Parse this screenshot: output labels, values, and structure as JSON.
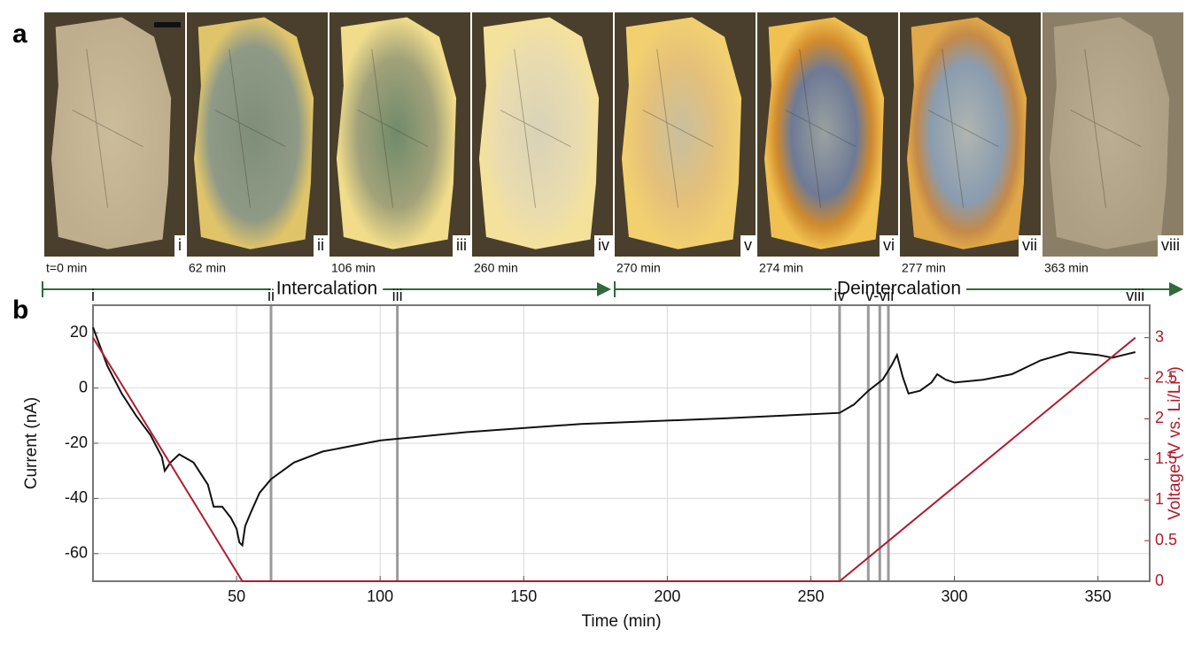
{
  "panel_a": {
    "label": "a",
    "images": [
      {
        "numeral": "i",
        "time": "t=0 min"
      },
      {
        "numeral": "ii",
        "time": "62 min"
      },
      {
        "numeral": "iii",
        "time": "106 min"
      },
      {
        "numeral": "iv",
        "time": "260 min"
      },
      {
        "numeral": "v",
        "time": "270 min"
      },
      {
        "numeral": "vi",
        "time": "274 min"
      },
      {
        "numeral": "vii",
        "time": "277 min"
      },
      {
        "numeral": "viii",
        "time": "363 min"
      }
    ],
    "arrows": [
      "Intercalation",
      "Deintercalation"
    ]
  },
  "panel_b_label": "b",
  "chart_data": {
    "type": "line",
    "x_label": "Time (min)",
    "y_label": "Current (nA)",
    "y2_label": "Voltage (V vs. Li/Li⁺)",
    "xlim": [
      0,
      368
    ],
    "xticks": [
      50,
      100,
      150,
      200,
      250,
      300,
      350
    ],
    "ylim": [
      -70,
      30
    ],
    "yticks": [
      -60,
      -40,
      -20,
      0,
      20
    ],
    "y2lim": [
      0,
      3.4
    ],
    "y2ticks": [
      0,
      0.5,
      1,
      1.5,
      2,
      2.5,
      3
    ],
    "grid": true,
    "series": [
      {
        "color": "#111111",
        "axis": "y",
        "x": [
          0,
          5,
          10,
          15,
          20,
          24,
          25,
          27,
          30,
          35,
          40,
          42,
          45,
          48,
          50,
          51,
          52,
          53,
          55,
          58,
          62,
          70,
          80,
          100,
          130,
          170,
          220,
          260,
          265,
          270,
          275,
          278,
          280,
          282,
          284,
          288,
          292,
          294,
          297,
          300,
          310,
          320,
          330,
          340,
          350,
          355,
          363
        ],
        "values": [
          22,
          8,
          -2,
          -10,
          -17,
          -25,
          -30,
          -27,
          -24,
          -27,
          -35,
          -43,
          -43,
          -47,
          -51,
          -56,
          -57,
          -50,
          -45,
          -38,
          -33,
          -27,
          -23,
          -19,
          -16,
          -13,
          -11,
          -9,
          -6,
          -1,
          3,
          8,
          12,
          4,
          -2,
          -1,
          2,
          5,
          3,
          2,
          3,
          5,
          10,
          13,
          12,
          11,
          13
        ]
      },
      {
        "color": "#b01c2e",
        "axis": "y2",
        "x": [
          0,
          52,
          260,
          363
        ],
        "values": [
          3,
          0,
          0,
          3
        ]
      }
    ],
    "events": {
      "lines": [
        62,
        106,
        260,
        270,
        274,
        277
      ],
      "labels": [
        "i",
        "ii",
        "iii",
        "iv",
        "v-vii",
        "viii"
      ],
      "label_x": [
        0,
        62,
        106,
        260,
        274,
        363
      ]
    }
  }
}
